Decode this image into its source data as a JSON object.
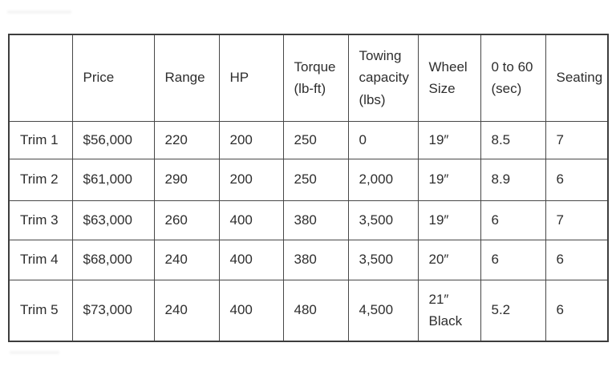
{
  "colors": {
    "background": "#ffffff",
    "border_outer": "#3d3d3d",
    "border_inner": "#474747",
    "text": "#2e2e2e"
  },
  "table": {
    "columns": [
      {
        "key": "trim",
        "label": ""
      },
      {
        "key": "price",
        "label": "Price"
      },
      {
        "key": "range",
        "label": "Range"
      },
      {
        "key": "hp",
        "label": "HP"
      },
      {
        "key": "torque",
        "label": "Torque\n(lb-ft)"
      },
      {
        "key": "towing",
        "label": "Towing\ncapacity\n(lbs)"
      },
      {
        "key": "wheel",
        "label": "Wheel\nSize"
      },
      {
        "key": "zero_to_sixty",
        "label": "0 to 60\n(sec)"
      },
      {
        "key": "seating",
        "label": "Seating"
      }
    ],
    "rows": [
      {
        "trim": "Trim 1",
        "price": "$56,000",
        "range": "220",
        "hp": "200",
        "torque": "250",
        "towing": "0",
        "wheel": "19″",
        "zero_to_sixty": "8.5",
        "seating": "7"
      },
      {
        "trim": "Trim 2",
        "price": "$61,000",
        "range": "290",
        "hp": "200",
        "torque": "250",
        "towing": "2,000",
        "wheel": "19″",
        "zero_to_sixty": "8.9",
        "seating": "6"
      },
      {
        "trim": "Trim 3",
        "price": "$63,000",
        "range": "260",
        "hp": "400",
        "torque": "380",
        "towing": "3,500",
        "wheel": "19″",
        "zero_to_sixty": "6",
        "seating": "7"
      },
      {
        "trim": "Trim 4",
        "price": "$68,000",
        "range": "240",
        "hp": "400",
        "torque": "380",
        "towing": "3,500",
        "wheel": "20″",
        "zero_to_sixty": "6",
        "seating": "6"
      },
      {
        "trim": "Trim 5",
        "price": "$73,000",
        "range": "240",
        "hp": "400",
        "torque": "480",
        "towing": "4,500",
        "wheel": "21″\nBlack",
        "zero_to_sixty": "5.2",
        "seating": "6"
      }
    ]
  }
}
